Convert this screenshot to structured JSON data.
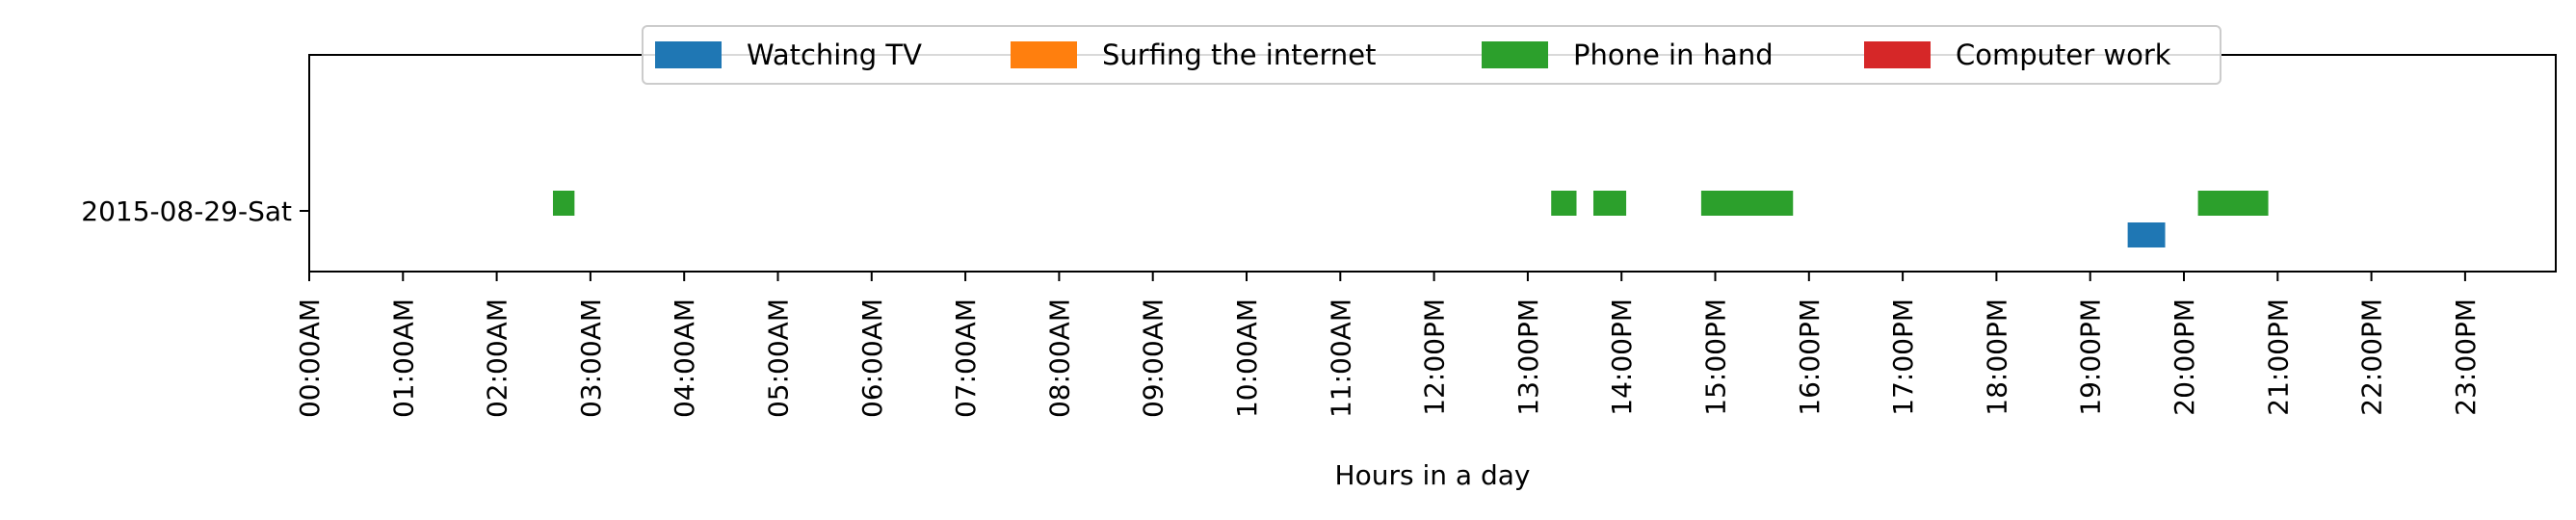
{
  "chart_data": {
    "type": "timeline",
    "title": "",
    "xlabel": "Hours in a day",
    "ylabel": "",
    "xlim": [
      0,
      24
    ],
    "x_ticks": [
      "00:00AM",
      "01:00AM",
      "02:00AM",
      "03:00AM",
      "04:00AM",
      "05:00AM",
      "06:00AM",
      "07:00AM",
      "08:00AM",
      "09:00AM",
      "10:00AM",
      "11:00AM",
      "12:00PM",
      "13:00PM",
      "14:00PM",
      "15:00PM",
      "16:00PM",
      "17:00PM",
      "18:00PM",
      "19:00PM",
      "20:00PM",
      "21:00PM",
      "22:00PM",
      "23:00PM"
    ],
    "categories": [
      "2015-08-29-Sat"
    ],
    "legend_position": "top-center",
    "grid": false,
    "series": [
      {
        "name": "Watching TV",
        "color": "#1f77b4",
        "intervals": [
          [
            19.4,
            19.8
          ]
        ]
      },
      {
        "name": "Surfing the internet",
        "color": "#ff7f0e",
        "intervals": []
      },
      {
        "name": "Phone in hand",
        "color": "#2ca02c",
        "intervals": [
          [
            2.6,
            2.83
          ],
          [
            13.25,
            13.52
          ],
          [
            13.7,
            14.05
          ],
          [
            14.85,
            15.83
          ],
          [
            20.15,
            20.9
          ]
        ]
      },
      {
        "name": "Computer work",
        "color": "#d62728",
        "intervals": []
      }
    ]
  }
}
